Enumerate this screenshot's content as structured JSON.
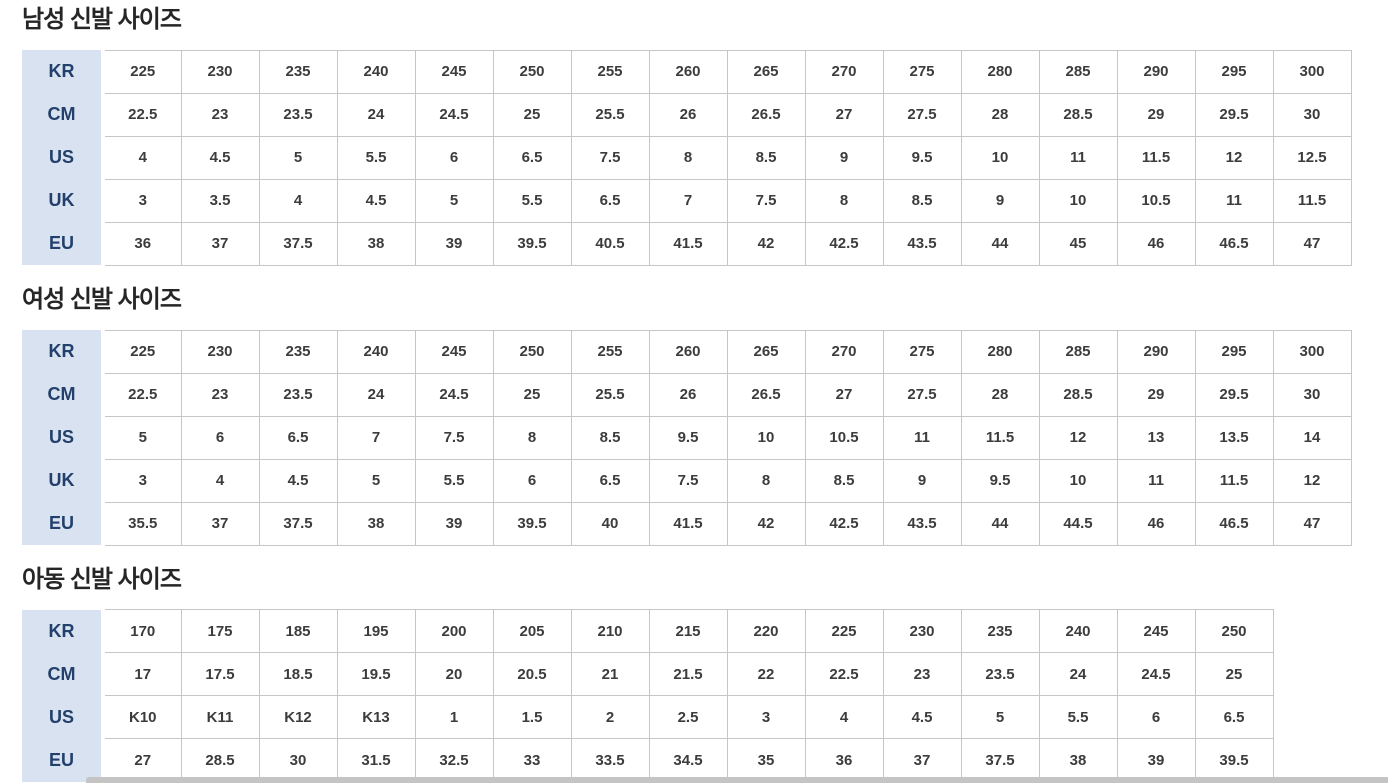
{
  "colors": {
    "header_bg": "#d9e2f1",
    "header_text": "#22406b",
    "cell_border": "#c6c6c6",
    "cell_text": "#3c3c3c",
    "title_text": "#262626",
    "scrollbar": "#c4c4c4"
  },
  "sections": [
    {
      "title": "남성 신발 사이즈",
      "rows": [
        {
          "label": "KR",
          "values": [
            "225",
            "230",
            "235",
            "240",
            "245",
            "250",
            "255",
            "260",
            "265",
            "270",
            "275",
            "280",
            "285",
            "290",
            "295",
            "300"
          ]
        },
        {
          "label": "CM",
          "values": [
            "22.5",
            "23",
            "23.5",
            "24",
            "24.5",
            "25",
            "25.5",
            "26",
            "26.5",
            "27",
            "27.5",
            "28",
            "28.5",
            "29",
            "29.5",
            "30"
          ]
        },
        {
          "label": "US",
          "values": [
            "4",
            "4.5",
            "5",
            "5.5",
            "6",
            "6.5",
            "7.5",
            "8",
            "8.5",
            "9",
            "9.5",
            "10",
            "11",
            "11.5",
            "12",
            "12.5"
          ]
        },
        {
          "label": "UK",
          "values": [
            "3",
            "3.5",
            "4",
            "4.5",
            "5",
            "5.5",
            "6.5",
            "7",
            "7.5",
            "8",
            "8.5",
            "9",
            "10",
            "10.5",
            "11",
            "11.5"
          ]
        },
        {
          "label": "EU",
          "values": [
            "36",
            "37",
            "37.5",
            "38",
            "39",
            "39.5",
            "40.5",
            "41.5",
            "42",
            "42.5",
            "43.5",
            "44",
            "45",
            "46",
            "46.5",
            "47"
          ]
        }
      ]
    },
    {
      "title": "여성 신발 사이즈",
      "rows": [
        {
          "label": "KR",
          "values": [
            "225",
            "230",
            "235",
            "240",
            "245",
            "250",
            "255",
            "260",
            "265",
            "270",
            "275",
            "280",
            "285",
            "290",
            "295",
            "300"
          ]
        },
        {
          "label": "CM",
          "values": [
            "22.5",
            "23",
            "23.5",
            "24",
            "24.5",
            "25",
            "25.5",
            "26",
            "26.5",
            "27",
            "27.5",
            "28",
            "28.5",
            "29",
            "29.5",
            "30"
          ]
        },
        {
          "label": "US",
          "values": [
            "5",
            "6",
            "6.5",
            "7",
            "7.5",
            "8",
            "8.5",
            "9.5",
            "10",
            "10.5",
            "11",
            "11.5",
            "12",
            "13",
            "13.5",
            "14"
          ]
        },
        {
          "label": "UK",
          "values": [
            "3",
            "4",
            "4.5",
            "5",
            "5.5",
            "6",
            "6.5",
            "7.5",
            "8",
            "8.5",
            "9",
            "9.5",
            "10",
            "11",
            "11.5",
            "12"
          ]
        },
        {
          "label": "EU",
          "values": [
            "35.5",
            "37",
            "37.5",
            "38",
            "39",
            "39.5",
            "40",
            "41.5",
            "42",
            "42.5",
            "43.5",
            "44",
            "44.5",
            "46",
            "46.5",
            "47"
          ]
        }
      ]
    },
    {
      "title": "아동 신발 사이즈",
      "rows": [
        {
          "label": "KR",
          "values": [
            "170",
            "175",
            "185",
            "195",
            "200",
            "205",
            "210",
            "215",
            "220",
            "225",
            "230",
            "235",
            "240",
            "245",
            "250"
          ]
        },
        {
          "label": "CM",
          "values": [
            "17",
            "17.5",
            "18.5",
            "19.5",
            "20",
            "20.5",
            "21",
            "21.5",
            "22",
            "22.5",
            "23",
            "23.5",
            "24",
            "24.5",
            "25"
          ]
        },
        {
          "label": "US",
          "values": [
            "K10",
            "K11",
            "K12",
            "K13",
            "1",
            "1.5",
            "2",
            "2.5",
            "3",
            "4",
            "4.5",
            "5",
            "5.5",
            "6",
            "6.5"
          ]
        },
        {
          "label": "EU",
          "values": [
            "27",
            "28.5",
            "30",
            "31.5",
            "32.5",
            "33",
            "33.5",
            "34.5",
            "35",
            "36",
            "37",
            "37.5",
            "38",
            "39",
            "39.5"
          ]
        }
      ]
    }
  ]
}
